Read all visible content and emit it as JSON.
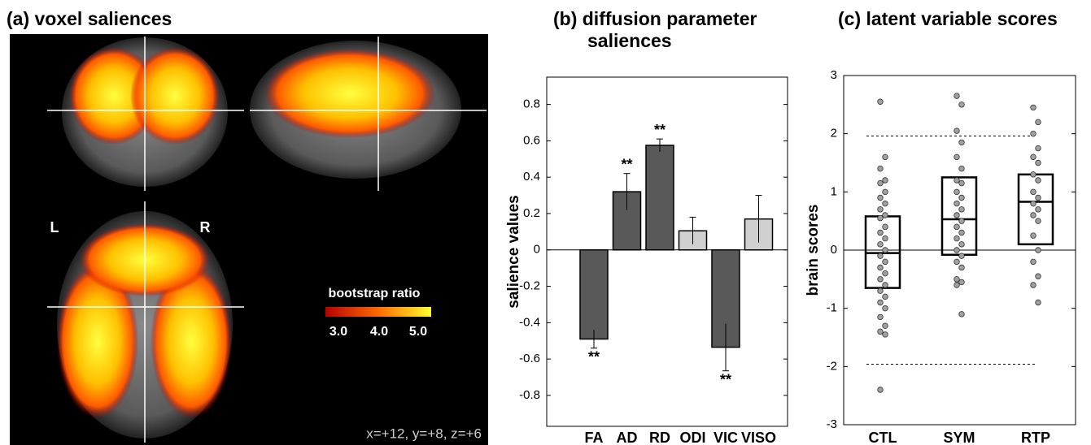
{
  "panel_a": {
    "title": "(a) voxel saliences",
    "left_label": "L",
    "right_label": "R",
    "colorbar_title": "bootstrap ratio",
    "colorbar_ticks": [
      "3.0",
      "4.0",
      "5.0"
    ],
    "coordinates": "x=+12, y=+8, z=+6"
  },
  "chart_data": [
    {
      "type": "bar",
      "title": "(b) diffusion parameter saliences",
      "y_label": "salience values",
      "categories": [
        "FA",
        "AD",
        "RD",
        "ODI",
        "VIC",
        "VISO"
      ],
      "values": [
        -0.49,
        0.32,
        0.575,
        0.105,
        -0.535,
        0.17
      ],
      "errors": [
        0.05,
        0.1,
        0.035,
        0.075,
        0.13,
        0.13
      ],
      "colors": [
        "#595959",
        "#595959",
        "#595959",
        "#d0d0d0",
        "#595959",
        "#d0d0d0"
      ],
      "significance": [
        "**",
        "**",
        "**",
        null,
        "**",
        null
      ],
      "ylim": [
        -0.97,
        0.95
      ],
      "yticks": [
        -0.8,
        -0.6,
        -0.4,
        -0.2,
        0,
        0.2,
        0.4,
        0.6,
        0.8
      ]
    },
    {
      "type": "box",
      "title": "(c) latent variable scores",
      "y_label": "brain scores",
      "categories": [
        "CTL",
        "SYM",
        "RTP"
      ],
      "boxes": [
        {
          "q1": -0.65,
          "median": -0.05,
          "q3": 0.58
        },
        {
          "q1": -0.08,
          "median": 0.53,
          "q3": 1.25
        },
        {
          "q1": 0.1,
          "median": 0.83,
          "q3": 1.3
        }
      ],
      "points": [
        [
          2.55,
          1.6,
          1.4,
          1.2,
          1.15,
          1.0,
          0.9,
          0.8,
          0.7,
          0.6,
          0.55,
          0.4,
          0.3,
          0.2,
          0.1,
          0.0,
          -0.1,
          -0.2,
          -0.3,
          -0.4,
          -0.5,
          -0.6,
          -0.7,
          -0.8,
          -0.9,
          -1.0,
          -1.15,
          -1.3,
          -1.4,
          -1.45,
          -2.4
        ],
        [
          2.65,
          2.5,
          2.05,
          1.85,
          1.6,
          1.4,
          1.2,
          1.15,
          1.0,
          0.9,
          0.8,
          0.7,
          0.6,
          0.5,
          0.4,
          0.3,
          0.2,
          0.1,
          0.0,
          -0.1,
          -0.2,
          -0.3,
          -0.5,
          -0.55,
          -0.6,
          -1.1
        ],
        [
          2.45,
          2.2,
          2.0,
          1.75,
          1.6,
          1.5,
          1.3,
          1.2,
          1.0,
          0.9,
          0.8,
          0.7,
          0.6,
          0.5,
          0.25,
          0.0,
          -0.2,
          -0.45,
          -0.6,
          -0.9
        ]
      ],
      "reference_lines": [
        1.96,
        -1.96
      ],
      "ylim": [
        -3,
        3
      ],
      "yticks": [
        -3,
        -2,
        -1,
        0,
        1,
        2,
        3
      ]
    }
  ]
}
